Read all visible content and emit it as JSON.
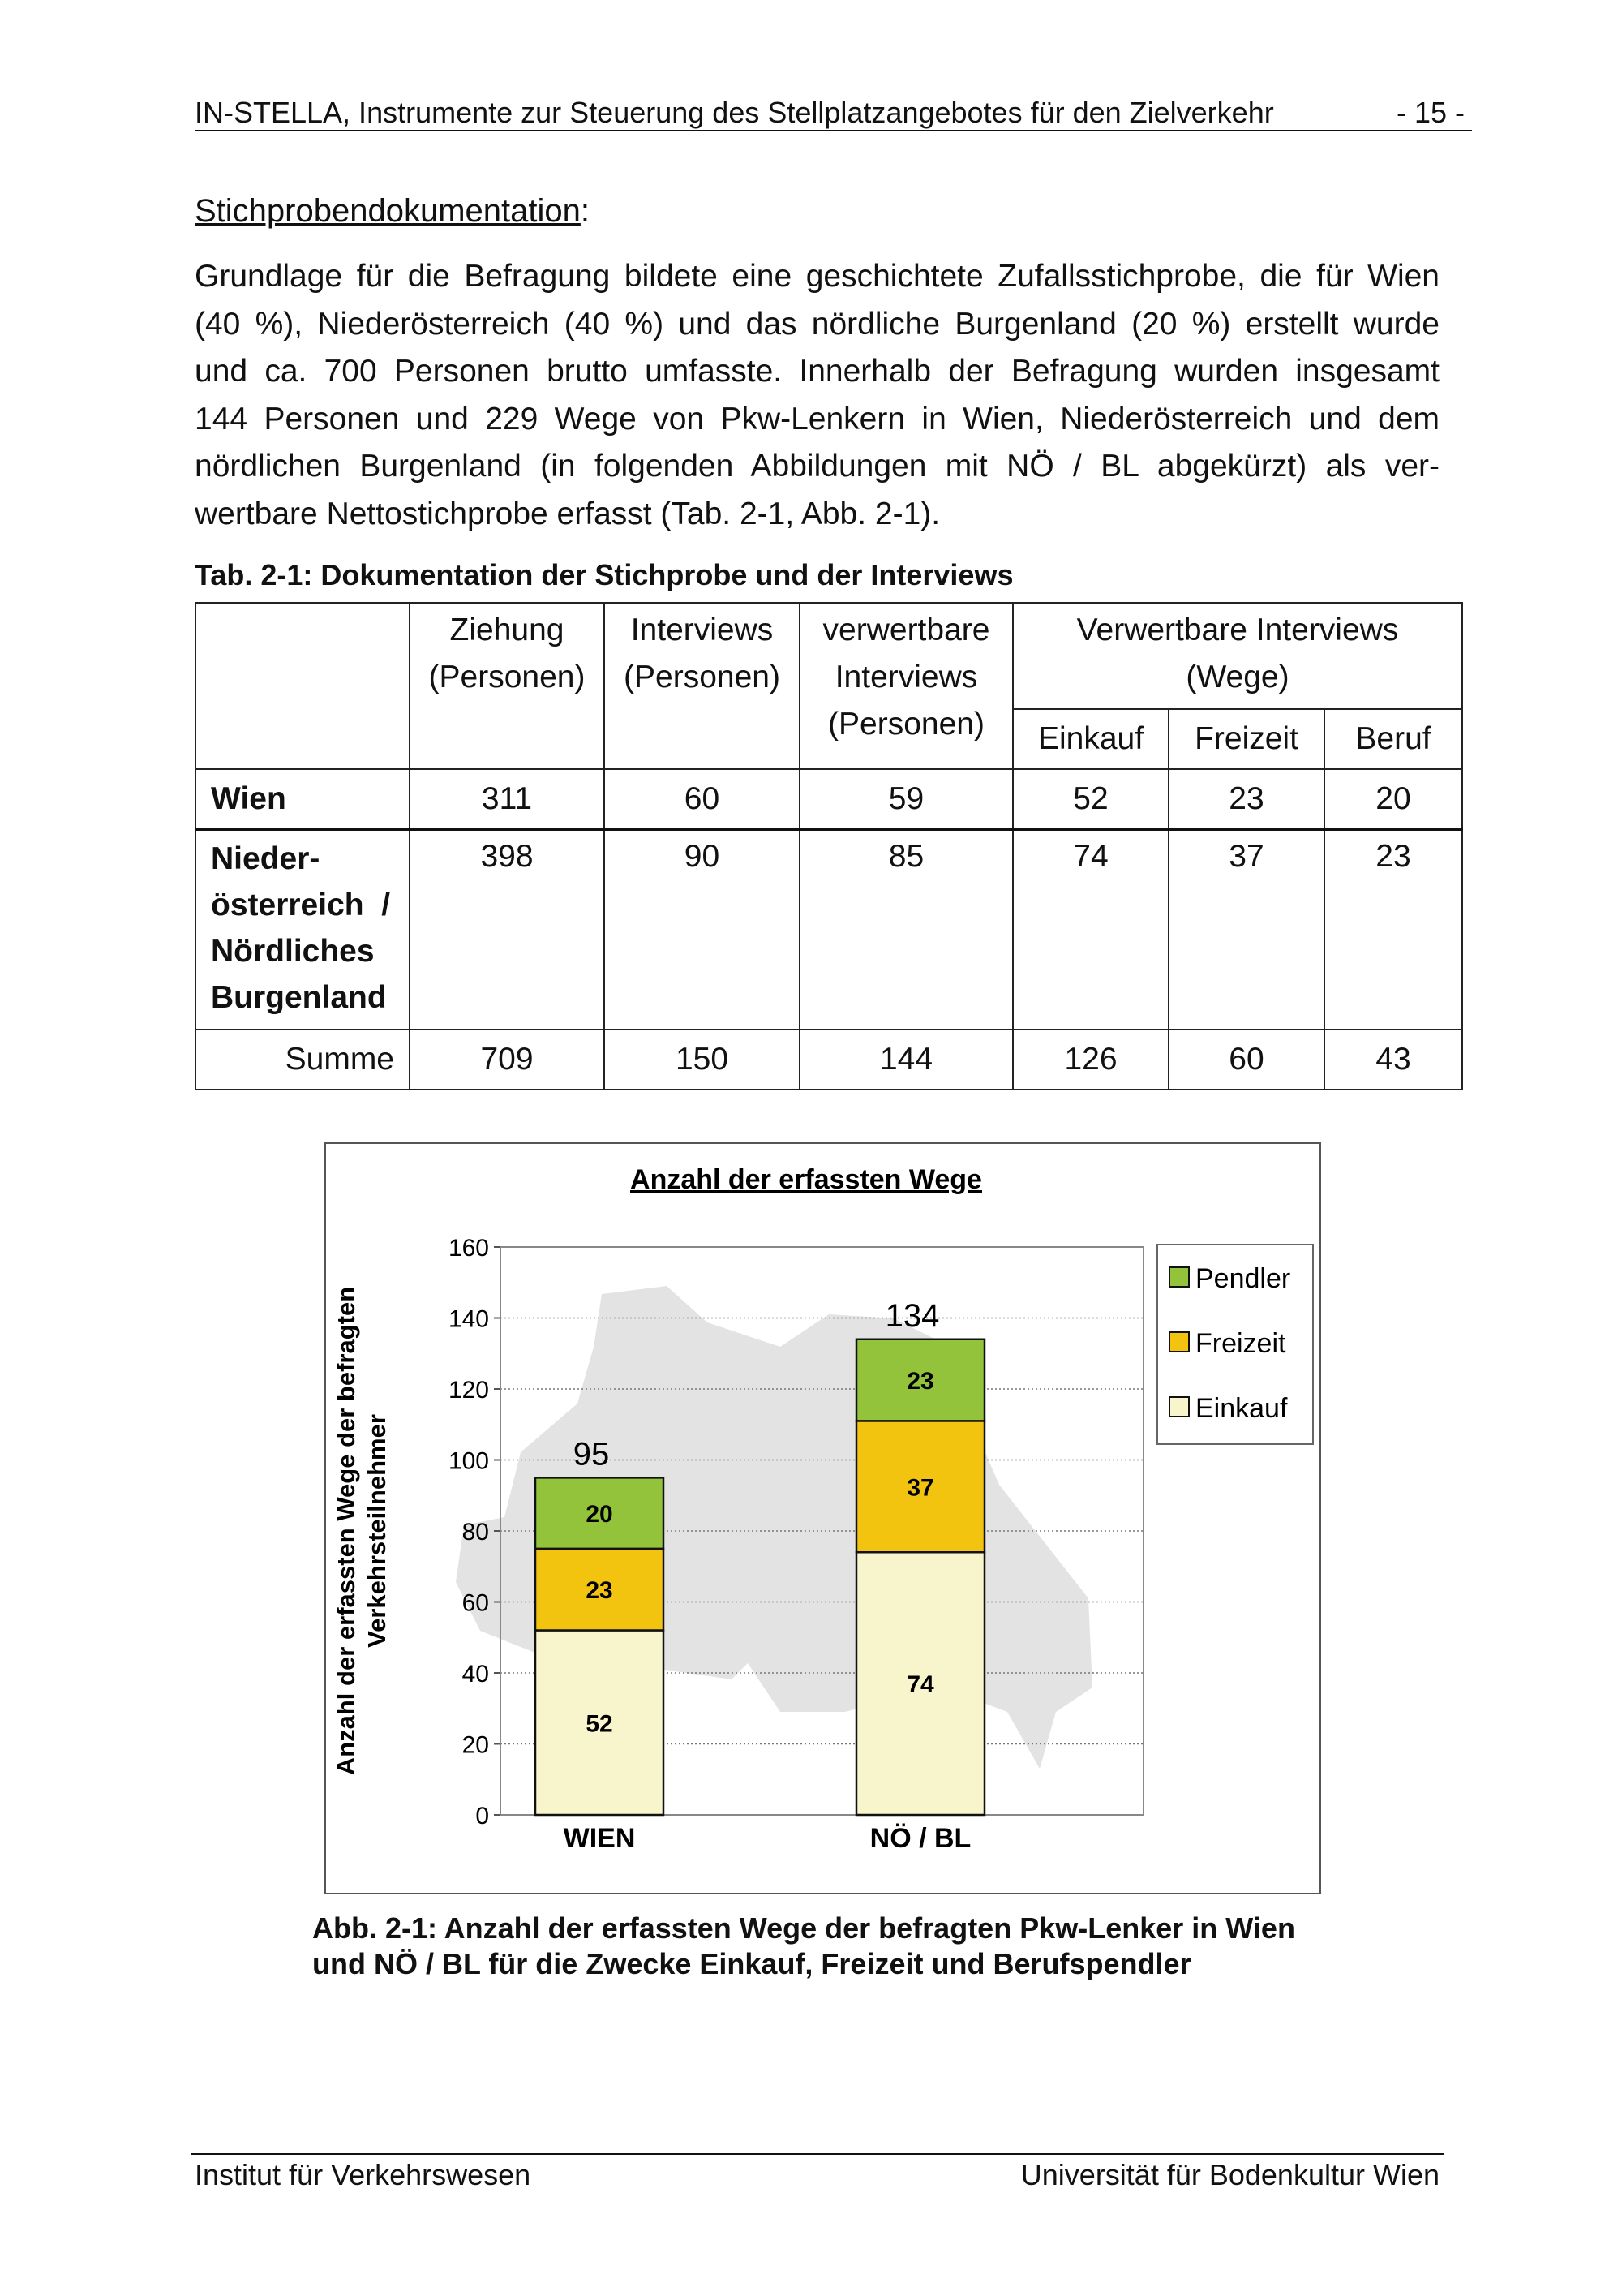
{
  "header": {
    "title": "IN-STELLA, Instrumente zur Steuerung des Stellplatzangebotes für den Zielverkehr",
    "page": "- 15 -"
  },
  "section_title": "Stichprobendokumentation",
  "section_colon": ":",
  "paragraph_lines": [
    "Grundlage für die Befragung bildete eine geschichtete Zufallsstichprobe, die für Wien",
    "(40 %), Niederösterreich (40 %) und das nördliche Burgenland (20 %) erstellt wurde",
    "und ca. 700 Personen brutto umfasste. Innerhalb der Befragung wurden insgesamt",
    "144 Personen und 229 Wege von Pkw-Lenkern in Wien, Niederösterreich und dem",
    "nördlichen Burgenland (in folgenden Abbildungen mit NÖ / BL abgekürzt) als ver-",
    "wertbare Nettostichprobe erfasst (Tab. 2-1, Abb. 2-1)."
  ],
  "table": {
    "caption": "Tab. 2-1: Dokumentation der Stichprobe und der Interviews",
    "headers": {
      "ziehung": [
        "Ziehung",
        "(Personen)"
      ],
      "interviews": [
        "Interviews",
        "(Personen)"
      ],
      "verwertbare": [
        "verwertbare",
        "Interviews",
        "(Personen)"
      ],
      "wege_group": [
        "Verwertbare Interviews",
        "(Wege)"
      ],
      "einkauf": "Einkauf",
      "freizeit": "Freizeit",
      "beruf": "Beruf"
    },
    "rows": [
      {
        "label": [
          "Wien"
        ],
        "values": [
          "311",
          "60",
          "59",
          "52",
          "23",
          "20"
        ]
      },
      {
        "label": [
          "Nieder-",
          "österreich  /",
          "Nördliches",
          "Burgenland"
        ],
        "values": [
          "398",
          "90",
          "85",
          "74",
          "37",
          "23"
        ]
      },
      {
        "label": [
          "Summe"
        ],
        "values": [
          "709",
          "150",
          "144",
          "126",
          "60",
          "43"
        ]
      }
    ]
  },
  "chart_data": {
    "type": "bar",
    "stacked": true,
    "title": "Anzahl der erfassten Wege",
    "ylabel": [
      "Anzahl der erfassten Wege der befragten",
      "Verkehrsteilnehmer"
    ],
    "xlabel": "",
    "categories": [
      "WIEN",
      "NÖ / BL"
    ],
    "series": [
      {
        "name": "Einkauf",
        "values": [
          52,
          74
        ],
        "color": "#f8f5cc"
      },
      {
        "name": "Freizeit",
        "values": [
          23,
          37
        ],
        "color": "#f2c40f"
      },
      {
        "name": "Pendler",
        "values": [
          20,
          23
        ],
        "color": "#92c33a"
      }
    ],
    "totals": [
      95,
      134
    ],
    "ylim": [
      0,
      160
    ],
    "yticks": [
      0,
      20,
      40,
      60,
      80,
      100,
      120,
      140,
      160
    ],
    "grid": true,
    "legend": "right",
    "legend_order": [
      "Pendler",
      "Freizeit",
      "Einkauf"
    ],
    "background": "map of Niederösterreich / Burgenland"
  },
  "figure_caption": [
    "Abb. 2-1: Anzahl der erfassten Wege der befragten Pkw-Lenker in Wien",
    "und NÖ / BL für die Zwecke Einkauf, Freizeit und Berufspendler"
  ],
  "footer": {
    "left": "Institut für Verkehrswesen",
    "right": "Universität für Bodenkultur Wien"
  }
}
